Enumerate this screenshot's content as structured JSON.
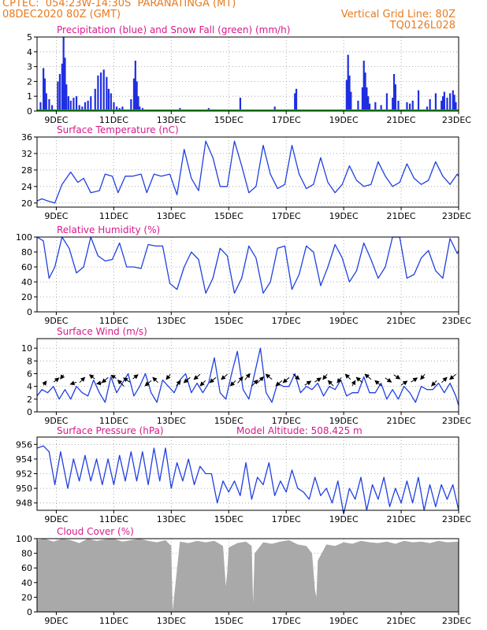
{
  "header": {
    "line1_left": "CPTEC:  054:23W-14:30S  PARANATINGA (MT)",
    "line2_left": "08DEC2020 80Z (GMT)",
    "line2_right": "Vertical Grid Line: 80Z",
    "code": "TQ0126L028"
  },
  "colors": {
    "header": "#e87a1d",
    "panel_title": "#d8198c",
    "line": "#2040e0",
    "precip": "#1f2fe0",
    "snow": "#18a018",
    "cloud": "#a9a9a9"
  },
  "x_axis": {
    "ticks": [
      "9DEC",
      "11DEC",
      "13DEC",
      "15DEC",
      "17DEC",
      "19DEC",
      "21DEC",
      "23DEC"
    ],
    "tick_days": [
      9,
      11,
      13,
      15,
      17,
      19,
      21,
      23
    ],
    "range_days": [
      8.33,
      23
    ]
  },
  "chart_data": [
    {
      "type": "bar",
      "title": "Precipitation (blue) and Snow Fall (green) (mm/h)",
      "ylim": [
        0,
        5
      ],
      "yticks": [
        "0",
        "1",
        "2",
        "3",
        "4",
        "5"
      ],
      "series": [
        {
          "name": "Precipitation",
          "x": [
            8.45,
            8.55,
            8.6,
            8.65,
            8.75,
            8.85,
            9.05,
            9.12,
            9.2,
            9.25,
            9.3,
            9.35,
            9.42,
            9.5,
            9.6,
            9.7,
            9.8,
            9.9,
            10.0,
            10.1,
            10.2,
            10.35,
            10.45,
            10.55,
            10.65,
            10.75,
            10.82,
            10.9,
            11.0,
            11.1,
            11.2,
            11.3,
            11.6,
            11.7,
            11.75,
            11.8,
            11.85,
            11.9,
            12.0,
            12.7,
            13.3,
            14.3,
            14.9,
            15.4,
            16.6,
            17.3,
            17.35,
            18.3,
            19.1,
            19.15,
            19.2,
            19.25,
            19.5,
            19.65,
            19.7,
            19.75,
            19.8,
            19.85,
            19.9,
            20.1,
            20.3,
            20.5,
            20.7,
            20.75,
            20.8,
            20.9,
            21.2,
            21.3,
            21.4,
            21.6,
            21.9,
            22.0,
            22.2,
            22.4,
            22.45,
            22.5,
            22.6,
            22.7,
            22.8,
            22.85,
            22.9
          ],
          "values": [
            0.6,
            2.9,
            2.2,
            1.2,
            0.8,
            0.4,
            2.0,
            2.5,
            3.2,
            5.0,
            3.6,
            1.8,
            1.0,
            0.7,
            0.9,
            1.0,
            0.4,
            0.3,
            0.6,
            0.7,
            1.0,
            1.5,
            2.4,
            2.6,
            2.8,
            2.3,
            1.5,
            1.2,
            0.6,
            0.3,
            0.2,
            0.3,
            0.8,
            2.2,
            3.4,
            2.0,
            1.0,
            0.3,
            0.2,
            0.1,
            0.2,
            0.2,
            0.1,
            0.9,
            0.3,
            1.2,
            1.5,
            0.1,
            2.1,
            3.8,
            2.4,
            1.3,
            0.7,
            1.6,
            3.4,
            2.6,
            1.6,
            1.0,
            0.5,
            0.6,
            0.4,
            1.2,
            0.9,
            2.5,
            1.8,
            0.7,
            0.6,
            0.5,
            0.7,
            1.4,
            0.3,
            0.8,
            1.2,
            0.7,
            1.0,
            1.3,
            0.9,
            1.2,
            1.4,
            1.1,
            0.6
          ]
        },
        {
          "name": "Snow Fall",
          "x": [
            8.33,
            23
          ],
          "values": [
            0,
            0
          ]
        }
      ]
    },
    {
      "type": "line",
      "title": "Surface Temperature (nC)",
      "ylim": [
        19,
        36
      ],
      "yticks": [
        "20",
        "24",
        "28",
        "32",
        "36"
      ],
      "x": [
        8.33,
        8.5,
        8.7,
        8.95,
        9.2,
        9.5,
        9.75,
        9.95,
        10.2,
        10.5,
        10.7,
        10.95,
        11.15,
        11.4,
        11.65,
        11.95,
        12.15,
        12.4,
        12.65,
        12.95,
        13.2,
        13.45,
        13.7,
        13.95,
        14.2,
        14.45,
        14.7,
        14.95,
        15.2,
        15.45,
        15.7,
        15.95,
        16.2,
        16.45,
        16.7,
        16.95,
        17.2,
        17.45,
        17.7,
        17.95,
        18.2,
        18.45,
        18.7,
        18.95,
        19.2,
        19.45,
        19.7,
        19.95,
        20.2,
        20.45,
        20.7,
        20.95,
        21.2,
        21.45,
        21.7,
        21.95,
        22.2,
        22.45,
        22.7,
        22.95,
        23.0
      ],
      "series": [
        {
          "values": [
            20.5,
            21,
            20.5,
            20,
            24.5,
            27.5,
            25,
            26,
            22.5,
            23,
            27,
            26.5,
            22.5,
            26.5,
            26.5,
            27,
            22.5,
            27,
            26.5,
            27,
            22,
            33,
            26,
            23,
            35,
            31,
            24,
            24,
            35,
            29,
            22.5,
            24,
            34,
            27,
            23.5,
            24.5,
            34,
            27,
            23.5,
            24.5,
            31,
            25,
            22.5,
            24.5,
            29,
            25.5,
            24,
            24.5,
            30,
            26.5,
            24,
            25,
            29.5,
            26,
            24.5,
            25.5,
            30,
            26.5,
            24.5,
            27,
            26.5
          ]
        }
      ]
    },
    {
      "type": "line",
      "title": "Relative Humidity (%)",
      "ylim": [
        0,
        100
      ],
      "yticks": [
        "0",
        "20",
        "40",
        "60",
        "80",
        "100"
      ],
      "x": [
        8.33,
        8.55,
        8.75,
        8.95,
        9.2,
        9.45,
        9.7,
        9.95,
        10.2,
        10.45,
        10.7,
        10.95,
        11.2,
        11.45,
        11.7,
        11.95,
        12.2,
        12.45,
        12.7,
        12.95,
        13.2,
        13.45,
        13.7,
        13.95,
        14.2,
        14.45,
        14.7,
        14.95,
        15.2,
        15.45,
        15.7,
        15.95,
        16.2,
        16.45,
        16.7,
        16.95,
        17.2,
        17.45,
        17.7,
        17.95,
        18.2,
        18.45,
        18.7,
        18.95,
        19.2,
        19.45,
        19.7,
        19.95,
        20.2,
        20.45,
        20.7,
        20.95,
        21.2,
        21.45,
        21.7,
        21.95,
        22.2,
        22.45,
        22.7,
        22.95,
        23.0
      ],
      "series": [
        {
          "values": [
            100,
            95,
            45,
            60,
            100,
            85,
            52,
            60,
            100,
            75,
            68,
            70,
            92,
            60,
            60,
            58,
            90,
            88,
            88,
            38,
            30,
            60,
            80,
            70,
            25,
            45,
            85,
            75,
            25,
            45,
            88,
            72,
            25,
            40,
            85,
            88,
            30,
            50,
            88,
            80,
            35,
            60,
            90,
            72,
            40,
            55,
            92,
            70,
            45,
            60,
            100,
            100,
            45,
            50,
            72,
            82,
            55,
            45,
            98,
            78,
            82
          ]
        }
      ]
    },
    {
      "type": "line",
      "title": "Surface Wind (m/s)",
      "ylim": [
        0,
        11.5
      ],
      "yticks": [
        "0",
        "2",
        "4",
        "6",
        "8",
        "10"
      ],
      "x": [
        8.33,
        8.5,
        8.7,
        8.9,
        9.1,
        9.3,
        9.5,
        9.7,
        9.9,
        10.1,
        10.3,
        10.5,
        10.7,
        10.9,
        11.1,
        11.3,
        11.5,
        11.7,
        11.9,
        12.1,
        12.3,
        12.5,
        12.7,
        12.9,
        13.1,
        13.3,
        13.5,
        13.7,
        13.9,
        14.1,
        14.3,
        14.5,
        14.7,
        14.9,
        15.1,
        15.3,
        15.5,
        15.7,
        15.9,
        16.1,
        16.3,
        16.5,
        16.7,
        16.9,
        17.1,
        17.3,
        17.5,
        17.7,
        17.9,
        18.1,
        18.3,
        18.5,
        18.7,
        18.9,
        19.1,
        19.3,
        19.5,
        19.7,
        19.9,
        20.1,
        20.3,
        20.5,
        20.7,
        20.9,
        21.1,
        21.3,
        21.5,
        21.7,
        21.9,
        22.1,
        22.3,
        22.5,
        22.7,
        22.9,
        23.0
      ],
      "series": [
        {
          "values": [
            2.5,
            3.5,
            3.0,
            4.0,
            2.0,
            3.5,
            2.0,
            4.0,
            3.0,
            2.5,
            5.0,
            3.0,
            1.5,
            5.5,
            3.0,
            4.5,
            6.0,
            2.5,
            4.0,
            6.0,
            3.0,
            1.5,
            5.0,
            4.0,
            3.0,
            5.0,
            6.0,
            3.0,
            4.5,
            3.0,
            4.5,
            8.5,
            3.0,
            2.0,
            6.0,
            9.5,
            3.5,
            2.0,
            6.0,
            10.0,
            3.0,
            1.5,
            4.5,
            4.0,
            4.0,
            6.0,
            3.0,
            4.0,
            3.5,
            4.5,
            2.5,
            4.0,
            3.5,
            5.0,
            2.5,
            3.0,
            3.0,
            5.5,
            3.0,
            3.0,
            4.5,
            2.0,
            3.5,
            2.0,
            4.0,
            3.0,
            1.5,
            4.0,
            3.5,
            3.5,
            4.5,
            3.0,
            4.5,
            2.5,
            1.0
          ]
        }
      ],
      "vectors": {
        "x": [
          8.6,
          9.0,
          9.2,
          9.6,
          9.9,
          10.25,
          10.5,
          10.7,
          11.0,
          11.25,
          11.45,
          11.75,
          12.2,
          12.45,
          12.9,
          13.25,
          13.55,
          13.9,
          14.1,
          14.45,
          14.85,
          15.15,
          15.4,
          15.65,
          15.9,
          16.1,
          16.4,
          16.75,
          17.0,
          17.35,
          17.75,
          18.1,
          18.35,
          18.55,
          18.85,
          19.15,
          19.35,
          19.55,
          19.85,
          20.2,
          20.55,
          20.85,
          21.1,
          21.45,
          21.75,
          22.15,
          22.5,
          22.8
        ],
        "u": [
          0.3,
          0.5,
          -0.3,
          -0.6,
          0.5,
          -0.5,
          -0.5,
          -0.6,
          -0.5,
          -0.6,
          -0.6,
          0.5,
          -0.6,
          -0.5,
          -0.4,
          0.4,
          -0.6,
          -0.6,
          -0.5,
          -0.6,
          -0.6,
          -0.5,
          0.5,
          0.5,
          0.6,
          0.6,
          -0.6,
          -0.6,
          -0.6,
          0.6,
          0.6,
          0.6,
          -0.4,
          -0.5,
          -0.4,
          -0.5,
          0.3,
          -0.6,
          -0.6,
          -0.6,
          0.6,
          0.6,
          0.6,
          0.6,
          -0.4,
          -0.5,
          0.5,
          -0.6
        ],
        "v": [
          0.4,
          0.4,
          -0.4,
          -0.2,
          0.5,
          0.4,
          -0.1,
          -0.5,
          0.3,
          0.6,
          0.4,
          0.4,
          -0.5,
          0.5,
          -0.5,
          0.5,
          -0.5,
          -0.5,
          -0.5,
          -0.5,
          -0.5,
          -0.5,
          0.6,
          0.6,
          0.6,
          0.6,
          0.5,
          -0.5,
          -0.5,
          -0.5,
          0.4,
          0.4,
          -0.5,
          0.5,
          -0.5,
          0.5,
          0.5,
          0.5,
          0.5,
          0.5,
          -0.4,
          -0.4,
          0.4,
          0.4,
          -0.5,
          -0.5,
          0.5,
          -0.5
        ]
      }
    },
    {
      "type": "line",
      "title": "Surface Pressure (hPa)",
      "annotation": "Model Altitude: 508.425 m",
      "ylim": [
        947,
        957
      ],
      "yticks": [
        "948",
        "950",
        "952",
        "954",
        "956"
      ],
      "x": [
        8.33,
        8.55,
        8.75,
        8.95,
        9.15,
        9.4,
        9.6,
        9.8,
        10.0,
        10.2,
        10.4,
        10.6,
        10.8,
        11.0,
        11.2,
        11.4,
        11.6,
        11.8,
        12.0,
        12.2,
        12.4,
        12.6,
        12.8,
        13.0,
        13.2,
        13.4,
        13.6,
        13.8,
        14.0,
        14.2,
        14.4,
        14.6,
        14.8,
        15.0,
        15.2,
        15.4,
        15.6,
        15.8,
        16.0,
        16.2,
        16.4,
        16.6,
        16.8,
        17.0,
        17.2,
        17.4,
        17.6,
        17.8,
        18.0,
        18.2,
        18.4,
        18.6,
        18.8,
        19.0,
        19.2,
        19.4,
        19.6,
        19.8,
        20.0,
        20.2,
        20.4,
        20.6,
        20.8,
        21.0,
        21.2,
        21.4,
        21.6,
        21.8,
        22.0,
        22.2,
        22.4,
        22.6,
        22.8,
        23.0
      ],
      "series": [
        {
          "values": [
            955.5,
            955.8,
            955,
            950.5,
            955,
            950,
            954,
            951,
            954.5,
            951,
            954,
            950.5,
            954,
            950.5,
            954.5,
            951,
            955,
            951,
            955,
            950.5,
            955.5,
            951,
            955.5,
            950,
            953.5,
            951,
            954,
            950.5,
            953,
            952,
            952,
            948,
            951,
            949.5,
            951,
            949,
            953.5,
            948.5,
            951.5,
            950.5,
            953.5,
            949,
            951,
            949.5,
            952.5,
            950,
            949.5,
            948.5,
            951.5,
            949,
            950,
            948,
            951,
            946.5,
            950,
            948.5,
            951.5,
            947,
            950.5,
            948.5,
            951.5,
            947.5,
            950,
            948,
            951,
            948,
            951.5,
            947,
            950.5,
            947.5,
            950.5,
            948.5,
            950.5,
            947
          ]
        }
      ]
    },
    {
      "type": "area",
      "title": "Cloud Cover (%)",
      "ylim": [
        0,
        100
      ],
      "yticks": [
        "0",
        "20",
        "40",
        "60",
        "80",
        "100"
      ],
      "x": [
        8.33,
        8.6,
        8.9,
        9.2,
        9.5,
        9.8,
        10.1,
        10.4,
        10.7,
        11.0,
        11.3,
        11.6,
        11.9,
        12.2,
        12.5,
        12.8,
        13.0,
        13.05,
        13.3,
        13.6,
        13.9,
        14.2,
        14.5,
        14.8,
        14.9,
        14.95,
        15.0,
        15.3,
        15.6,
        15.8,
        15.85,
        15.9,
        16.2,
        16.5,
        16.8,
        17.1,
        17.4,
        17.7,
        17.9,
        18.0,
        18.05,
        18.1,
        18.4,
        18.7,
        19.0,
        19.3,
        19.6,
        19.9,
        20.2,
        20.5,
        20.8,
        21.1,
        21.4,
        21.7,
        22.0,
        22.3,
        22.6,
        23.0
      ],
      "series": [
        {
          "values": [
            98,
            100,
            96,
            100,
            98,
            94,
            100,
            97,
            99,
            100,
            96,
            98,
            100,
            97,
            95,
            98,
            90,
            2,
            96,
            94,
            97,
            95,
            97,
            90,
            35,
            55,
            88,
            94,
            96,
            90,
            12,
            80,
            95,
            93,
            96,
            98,
            92,
            90,
            80,
            30,
            20,
            70,
            92,
            90,
            95,
            93,
            97,
            95,
            94,
            96,
            93,
            97,
            95,
            96,
            94,
            97,
            95,
            96
          ]
        }
      ]
    }
  ]
}
